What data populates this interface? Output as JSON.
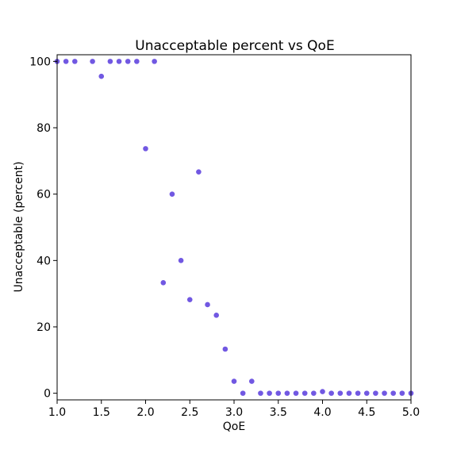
{
  "chart_data": {
    "type": "scatter",
    "title": "Unacceptable percent vs QoE",
    "xlabel": "QoE",
    "ylabel": "Unacceptable (percent)",
    "xlim": [
      1.0,
      5.0
    ],
    "ylim": [
      -2,
      102
    ],
    "xticks": [
      "1.0",
      "1.5",
      "2.0",
      "2.5",
      "3.0",
      "3.5",
      "4.0",
      "4.5",
      "5.0"
    ],
    "yticks": [
      "0",
      "20",
      "40",
      "60",
      "80",
      "100"
    ],
    "grid": false,
    "legend": "none",
    "marker_color": "#7158e2",
    "series": [
      {
        "x": [
          1.0,
          1.1,
          1.2,
          1.4,
          1.5,
          1.6,
          1.7,
          1.8,
          1.9,
          2.0,
          2.1,
          2.2,
          2.3,
          2.4,
          2.5,
          2.6,
          2.7,
          2.8,
          2.9,
          3.0,
          3.1,
          3.2,
          3.3,
          3.4,
          3.5,
          3.6,
          3.7,
          3.8,
          3.9,
          4.0,
          4.1,
          4.2,
          4.3,
          4.4,
          4.5,
          4.6,
          4.7,
          4.8,
          4.9,
          5.0
        ],
        "y": [
          100,
          100,
          100,
          100,
          95.5,
          100,
          100,
          100,
          100,
          73.7,
          100,
          33.3,
          60,
          40,
          28.2,
          66.7,
          26.7,
          23.5,
          13.3,
          3.6,
          0,
          3.6,
          0,
          0,
          0,
          0,
          0,
          0,
          0,
          0.5,
          0,
          0,
          0,
          0,
          0,
          0,
          0,
          0,
          0,
          0
        ]
      }
    ]
  }
}
